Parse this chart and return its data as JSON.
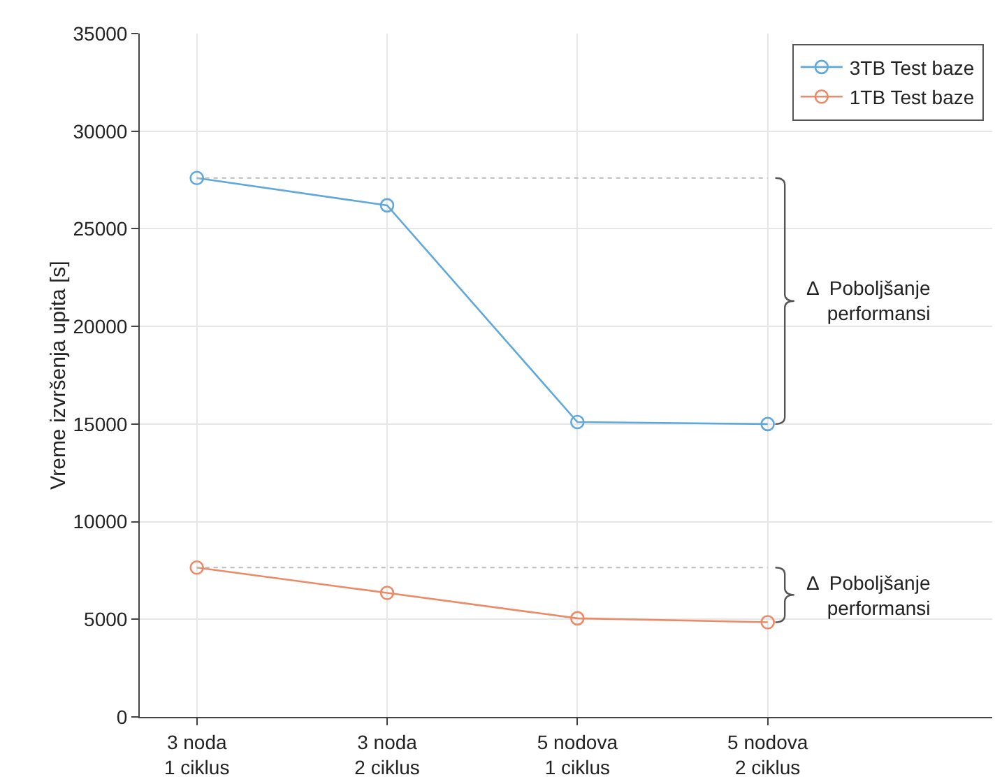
{
  "chart_data": {
    "type": "line",
    "ylabel": "Vreme izvršenja upita [s]",
    "categories": [
      "3 noda\n1 ciklus",
      "3 noda\n2 ciklus",
      "5 nodova\n1 ciklus",
      "5 nodova\n2 ciklus"
    ],
    "series": [
      {
        "name": "3TB Test baze",
        "color": "#5fa8dc",
        "values": [
          27600,
          26200,
          15100,
          15000
        ]
      },
      {
        "name": "1TB Test baze",
        "color": "#ec8a66",
        "values": [
          7650,
          6350,
          5050,
          4850
        ]
      }
    ],
    "ylim": [
      0,
      35000
    ],
    "yticks": [
      0,
      5000,
      10000,
      15000,
      20000,
      25000,
      30000,
      35000
    ],
    "grid": true,
    "legend": "top right",
    "marker": "circle",
    "line_style": "solid",
    "ref_lines": [
      {
        "axis": "y",
        "value": 27600,
        "color": "#bbbbbb",
        "line_style": "dotted"
      },
      {
        "axis": "y",
        "value": 7650,
        "color": "#bbbbbb",
        "line_style": "dotted"
      }
    ],
    "annotations": [
      "Δ  Poboljšanje\nperformansi",
      "Δ  Poboljšanje\nperformansi"
    ]
  }
}
